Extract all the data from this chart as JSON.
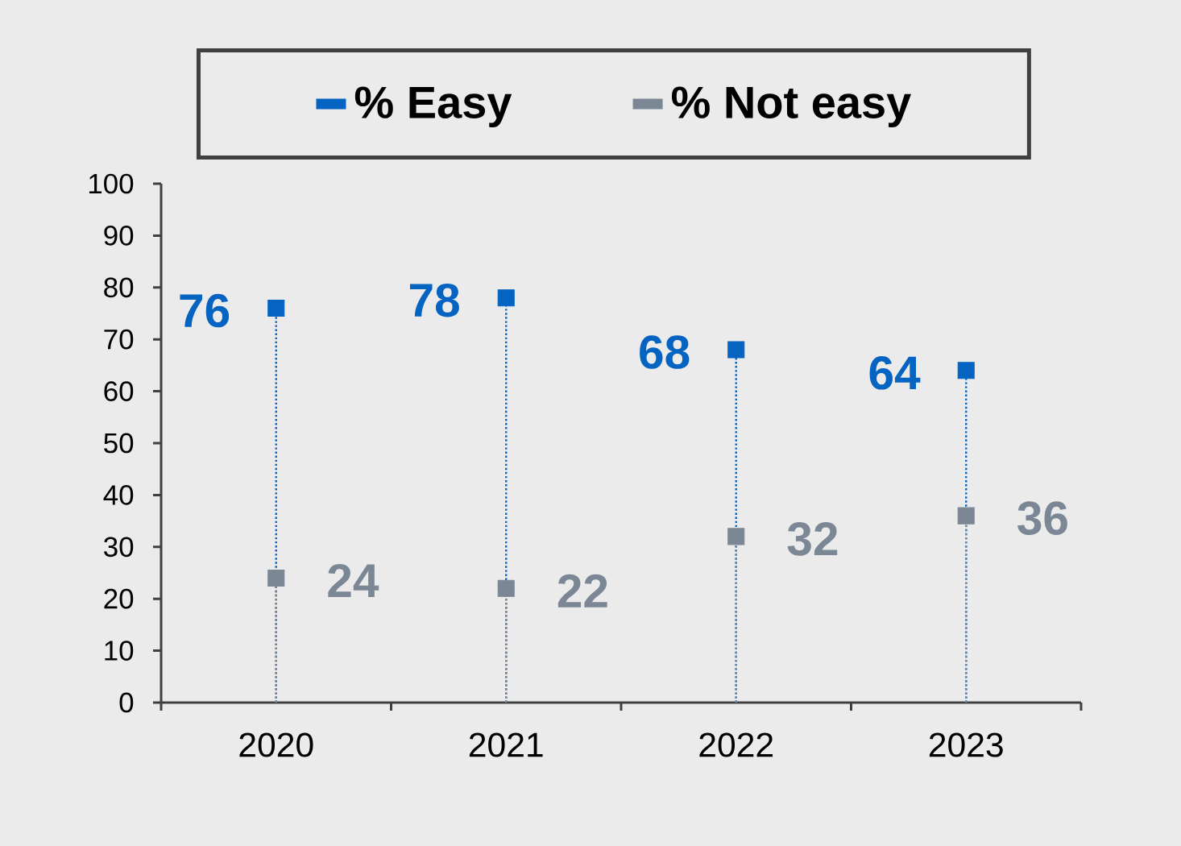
{
  "chart_data": {
    "type": "lollipop",
    "categories": [
      "2020",
      "2021",
      "2022",
      "2023"
    ],
    "series": [
      {
        "name": "% Easy",
        "color": "#0563C1",
        "values": [
          76,
          78,
          68,
          64
        ]
      },
      {
        "name": "% Not easy",
        "color": "#7B8794",
        "values": [
          24,
          22,
          32,
          36
        ]
      }
    ],
    "ylim": [
      0,
      100
    ],
    "yticks": [
      0,
      10,
      20,
      30,
      40,
      50,
      60,
      70,
      80,
      90,
      100
    ],
    "data_labels": true,
    "legend": "top",
    "marker": "square",
    "line_style": "dotted"
  }
}
